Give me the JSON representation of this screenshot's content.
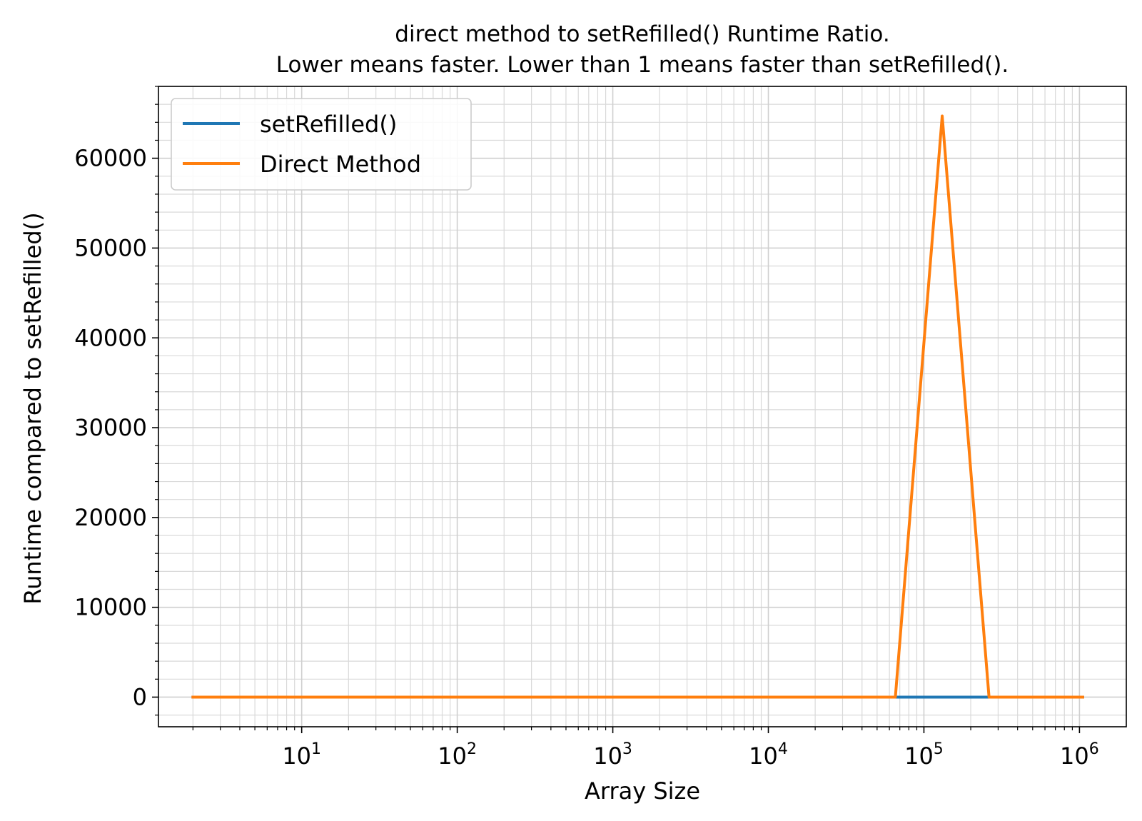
{
  "chart_data": {
    "type": "line",
    "title": "direct method to setRefilled() Runtime Ratio.",
    "subtitle": "Lower means faster. Lower than 1 means faster than setRefilled().",
    "xlabel": "Array Size",
    "ylabel": "Runtime compared to setRefilled()",
    "x_scale": "log",
    "xlim": [
      1.2,
      2000000
    ],
    "ylim": [
      -3300,
      68000
    ],
    "grid": true,
    "grid_minor": true,
    "legend_position": "top-left",
    "x_ticks": [
      10,
      100,
      1000,
      10000,
      100000,
      1000000
    ],
    "x_tick_labels": [
      {
        "base": "10",
        "exp": "1"
      },
      {
        "base": "10",
        "exp": "2"
      },
      {
        "base": "10",
        "exp": "3"
      },
      {
        "base": "10",
        "exp": "4"
      },
      {
        "base": "10",
        "exp": "5"
      },
      {
        "base": "10",
        "exp": "6"
      }
    ],
    "y_ticks": [
      0,
      10000,
      20000,
      30000,
      40000,
      50000,
      60000
    ],
    "y_tick_labels": [
      "0",
      "10000",
      "20000",
      "30000",
      "40000",
      "50000",
      "60000"
    ],
    "x": [
      2,
      4,
      8,
      16,
      32,
      64,
      128,
      256,
      512,
      1024,
      2048,
      4096,
      8192,
      16384,
      32768,
      65536,
      131072,
      262144,
      524288,
      1048576
    ],
    "series": [
      {
        "name": "setRefilled()",
        "color": "#1f77b4",
        "values": [
          1,
          1,
          1,
          1,
          1,
          1,
          1,
          1,
          1,
          1,
          1,
          1,
          1,
          1,
          1,
          1,
          1,
          1,
          1,
          1
        ]
      },
      {
        "name": "Direct Method",
        "color": "#ff7f0e",
        "values": [
          1,
          1,
          1,
          1,
          1,
          1,
          1,
          1,
          1,
          1,
          1,
          1,
          1,
          1,
          1,
          1,
          64700,
          1,
          1,
          1
        ]
      }
    ]
  }
}
